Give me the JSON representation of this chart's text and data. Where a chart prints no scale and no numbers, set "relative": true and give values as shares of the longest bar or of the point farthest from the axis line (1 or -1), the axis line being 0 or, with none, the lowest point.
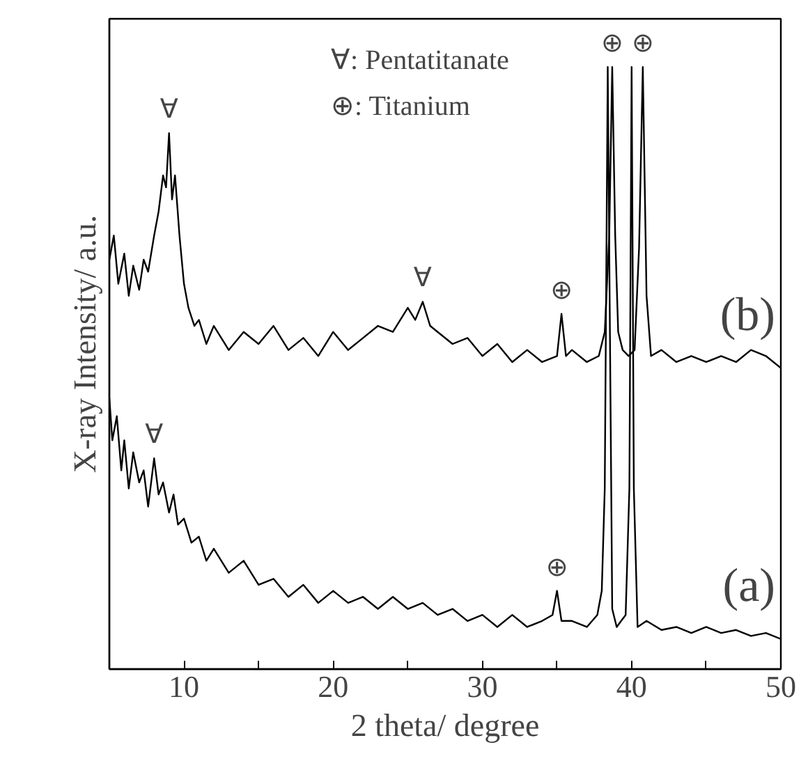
{
  "chart_data": {
    "type": "line",
    "relative": true,
    "xlabel": "2 theta/ degree",
    "ylabel": "X-ray Intensity/ a.u.",
    "xlim": [
      5,
      50
    ],
    "xticks": [
      10,
      {
        "value": 15,
        "label": null
      },
      20,
      {
        "value": 25,
        "label": null
      },
      30,
      {
        "value": 35,
        "label": null
      },
      40,
      {
        "value": 45,
        "label": null
      },
      50
    ],
    "series": [
      {
        "name": "(b)",
        "color": "#000000",
        "x": [
          5,
          5.3,
          5.6,
          6,
          6.3,
          6.6,
          7,
          7.3,
          7.6,
          8,
          8.3,
          8.6,
          8.8,
          9,
          9.2,
          9.4,
          9.7,
          10,
          10.3,
          10.7,
          11,
          11.5,
          12,
          13,
          14,
          15,
          16,
          17,
          18,
          19,
          20,
          21,
          22,
          23,
          24,
          25,
          25.5,
          26,
          26.5,
          27,
          28,
          29,
          30,
          31,
          32,
          33,
          34,
          35,
          35.3,
          35.6,
          36,
          37,
          37.8,
          38.2,
          38.5,
          38.7,
          38.9,
          39.1,
          39.4,
          39.8,
          40.2,
          40.5,
          40.75,
          41,
          41.3,
          42,
          43,
          44,
          45,
          46,
          47,
          48,
          49,
          50
        ],
        "values": [
          0.68,
          0.72,
          0.64,
          0.69,
          0.62,
          0.67,
          0.63,
          0.68,
          0.66,
          0.72,
          0.76,
          0.82,
          0.8,
          0.89,
          0.78,
          0.82,
          0.72,
          0.64,
          0.6,
          0.57,
          0.58,
          0.54,
          0.57,
          0.53,
          0.56,
          0.54,
          0.57,
          0.53,
          0.55,
          0.52,
          0.56,
          0.53,
          0.55,
          0.57,
          0.56,
          0.6,
          0.58,
          0.61,
          0.57,
          0.56,
          0.54,
          0.55,
          0.52,
          0.54,
          0.51,
          0.53,
          0.51,
          0.52,
          0.59,
          0.52,
          0.53,
          0.51,
          0.52,
          0.56,
          0.72,
          1,
          0.72,
          0.56,
          0.53,
          0.52,
          0.53,
          0.7,
          1,
          0.62,
          0.52,
          0.53,
          0.51,
          0.52,
          0.51,
          0.52,
          0.51,
          0.53,
          0.52,
          0.5
        ]
      },
      {
        "name": "(a)",
        "color": "#000000",
        "x": [
          5,
          5.2,
          5.5,
          5.8,
          6,
          6.3,
          6.6,
          7,
          7.3,
          7.6,
          8,
          8.3,
          8.6,
          9,
          9.3,
          9.6,
          10,
          10.5,
          11,
          11.5,
          12,
          13,
          14,
          15,
          16,
          17,
          18,
          19,
          20,
          21,
          22,
          23,
          24,
          25,
          26,
          27,
          28,
          29,
          30,
          31,
          32,
          33,
          34,
          34.7,
          35,
          35.3,
          36,
          37,
          37.7,
          38.0,
          38.2,
          38.4,
          38.7,
          39.0,
          39.3,
          39.6,
          39.85,
          40.0,
          40.15,
          40.4,
          41,
          42,
          43,
          44,
          45,
          46,
          47,
          48,
          49,
          50
        ],
        "values": [
          0.45,
          0.38,
          0.42,
          0.33,
          0.38,
          0.3,
          0.36,
          0.31,
          0.33,
          0.27,
          0.35,
          0.29,
          0.31,
          0.26,
          0.29,
          0.24,
          0.25,
          0.21,
          0.22,
          0.18,
          0.2,
          0.16,
          0.18,
          0.14,
          0.15,
          0.12,
          0.14,
          0.11,
          0.13,
          0.11,
          0.12,
          0.1,
          0.12,
          0.1,
          0.11,
          0.09,
          0.1,
          0.08,
          0.09,
          0.07,
          0.09,
          0.07,
          0.08,
          0.09,
          0.13,
          0.08,
          0.08,
          0.07,
          0.09,
          0.13,
          0.3,
          1,
          0.1,
          0.07,
          0.08,
          0.09,
          0.3,
          1,
          0.3,
          0.07,
          0.08,
          0.065,
          0.07,
          0.06,
          0.07,
          0.06,
          0.065,
          0.055,
          0.06,
          0.05
        ]
      }
    ],
    "annotations": [
      "∀: Pentatitanate",
      "⊕: Titanium",
      {
        "text": "∀",
        "x": 9,
        "y": 0.89
      },
      {
        "text": "∀",
        "x": 26,
        "y": 0.61
      },
      {
        "text": "⊕",
        "x": 35.3,
        "y": 0.59
      },
      {
        "text": "⊕",
        "x": 38.7,
        "y": 1
      },
      {
        "text": "⊕",
        "x": 40.75,
        "y": 1
      },
      {
        "text": "∀",
        "x": 8,
        "y": 0.35
      },
      {
        "text": "⊕",
        "x": 35,
        "y": 0.13
      }
    ]
  }
}
